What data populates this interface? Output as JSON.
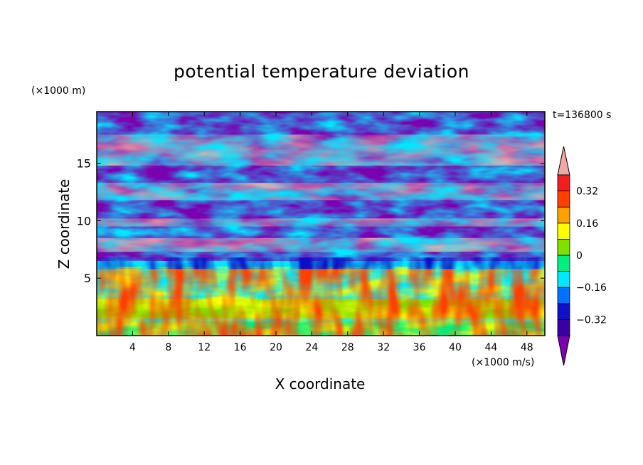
{
  "chart_data": {
    "type": "heatmap",
    "title": "potential temperature deviation",
    "xlabel": "X coordinate",
    "ylabel": "Z coordinate",
    "x_unit": "(×1000 m/s)",
    "y_unit": "(×1000 m)",
    "time_label": "t=136800 s",
    "xlim": [
      0,
      50
    ],
    "ylim": [
      0,
      19.5
    ],
    "x_ticks": [
      4,
      8,
      12,
      16,
      20,
      24,
      28,
      32,
      36,
      40,
      44,
      48
    ],
    "y_ticks": [
      5,
      10,
      15
    ],
    "colorbar": {
      "levels": [
        -0.4,
        -0.32,
        -0.24,
        -0.16,
        -0.08,
        0,
        0.08,
        0.16,
        0.24,
        0.32,
        0.4
      ],
      "tick_labels": [
        "0.32",
        "0.16",
        "0",
        "−0.16",
        "−0.32"
      ],
      "tick_values": [
        0.32,
        0.16,
        0,
        -0.16,
        -0.32
      ],
      "colors": [
        "#7a00b0",
        "#3a00a0",
        "#1010c8",
        "#0070ff",
        "#00e8ff",
        "#00f080",
        "#80e000",
        "#ffff00",
        "#ffa000",
        "#ff4000",
        "#f02020",
        "#f4a6a6"
      ],
      "extend": "both"
    }
  }
}
